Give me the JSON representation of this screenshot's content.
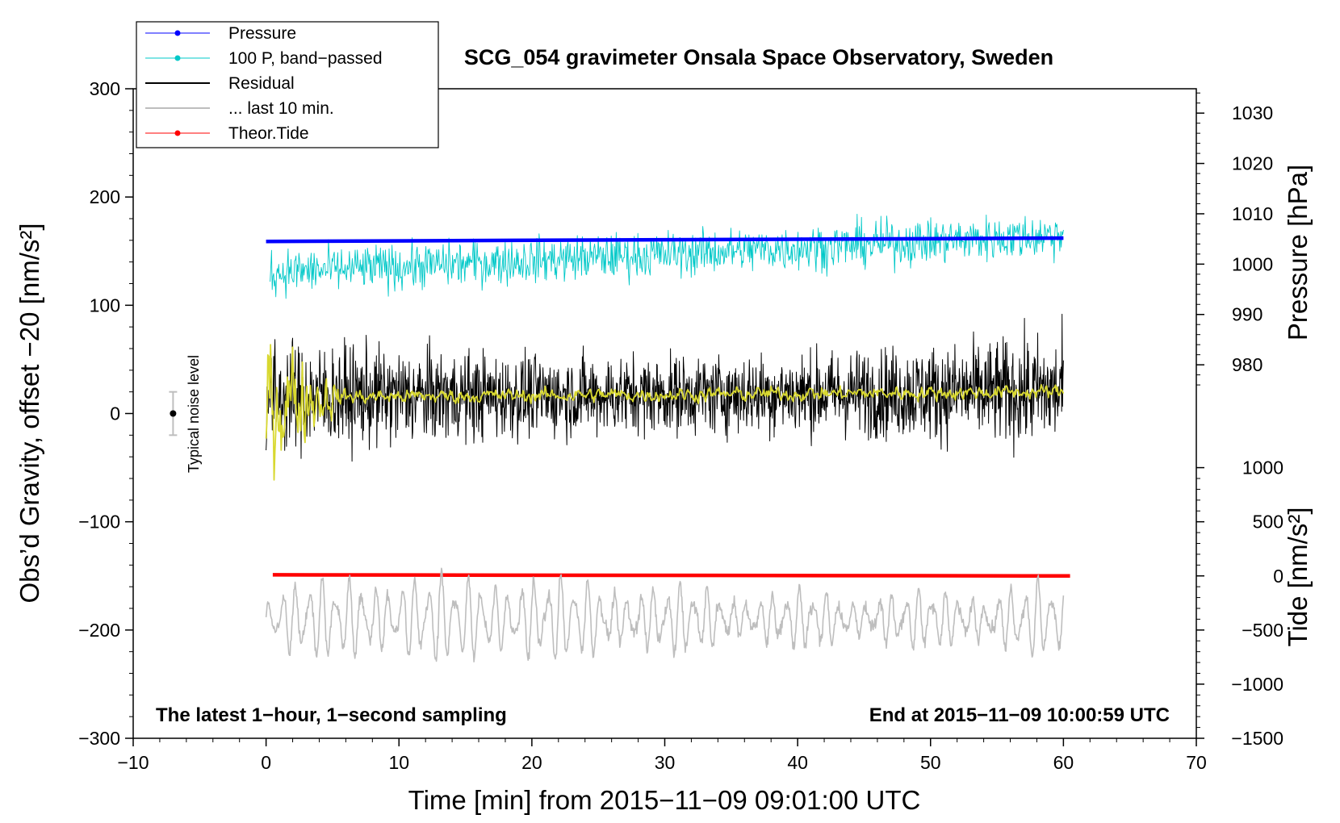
{
  "chart_data": {
    "type": "line",
    "title": "SCG_054 gravimeter Onsala Space Observatory, Sweden",
    "xlabel": "Time [min] from 2015−11−09 09:01:00 UTC",
    "ylabel_left": "Obs’d Gravity, offset −20 [nm/s²]",
    "ylabel_right_pressure": "Pressure [hPa]",
    "ylabel_right_tide": "Tide [nm/s²]",
    "xlim": [
      -10,
      70
    ],
    "ylim": [
      -300,
      300
    ],
    "x_ticks": [
      {
        "v": -10,
        "label": "−10"
      },
      {
        "v": 0,
        "label": "0"
      },
      {
        "v": 10,
        "label": "10"
      },
      {
        "v": 20,
        "label": "20"
      },
      {
        "v": 30,
        "label": "30"
      },
      {
        "v": 40,
        "label": "40"
      },
      {
        "v": 50,
        "label": "50"
      },
      {
        "v": 60,
        "label": "60"
      },
      {
        "v": 70,
        "label": "70"
      }
    ],
    "y_ticks": [
      {
        "v": 300,
        "label": "300"
      },
      {
        "v": 200,
        "label": "200"
      },
      {
        "v": 100,
        "label": "100"
      },
      {
        "v": 0,
        "label": "0"
      },
      {
        "v": -100,
        "label": "−100"
      },
      {
        "v": -200,
        "label": "−200"
      },
      {
        "v": -300,
        "label": "−300"
      }
    ],
    "pressure_axis": {
      "ticks": [
        {
          "v": 1030,
          "label": "1030"
        },
        {
          "v": 1020,
          "label": "1020"
        },
        {
          "v": 1010,
          "label": "1010"
        },
        {
          "v": 1000,
          "label": "1000"
        },
        {
          "v": 990,
          "label": "990"
        },
        {
          "v": 980,
          "label": "980"
        }
      ],
      "ref_pressure_hpa": 1000,
      "ref_gravity": 138,
      "gravity_per_hpa": 4.65
    },
    "tide_axis": {
      "ticks": [
        {
          "v": 1000,
          "label": "1000"
        },
        {
          "v": 500,
          "label": "500"
        },
        {
          "v": 0,
          "label": "0"
        },
        {
          "v": -500,
          "label": "−500"
        },
        {
          "v": -1000,
          "label": "−1000"
        },
        {
          "v": -1500,
          "label": "−1500"
        }
      ],
      "ref_tide": 0,
      "ref_gravity": -150,
      "gravity_per_unit": 0.1
    },
    "legend": {
      "position": "top-left",
      "entries": [
        {
          "label": "Pressure",
          "color": "#0000ff",
          "marker": true
        },
        {
          "label": "100 P, band−passed",
          "color": "#00c8c8",
          "marker": true
        },
        {
          "label": "Residual",
          "color": "#000000",
          "marker": false
        },
        {
          "label": "... last 10 min.",
          "color": "#bebebe",
          "marker": false
        },
        {
          "label": "Theor.Tide",
          "color": "#ff0000",
          "marker": true
        }
      ]
    },
    "annotations": {
      "bottom_left": "The latest 1−hour, 1−second sampling",
      "bottom_right": "End at 2015−11−09 10:00:59 UTC",
      "noise_label": "Typical noise level"
    },
    "noise_bar": {
      "x": -7,
      "center": 0,
      "low": -20,
      "high": 20
    },
    "series": [
      {
        "name": "Pressure",
        "color": "#0000ff",
        "x_start": 0,
        "x_end": 60,
        "kind": "linear",
        "y_start": 159,
        "y_end": 162
      },
      {
        "name": "100 P, band−passed",
        "color": "#00c8c8",
        "x_start": 0.3,
        "x_end": 60,
        "kind": "noise",
        "y_start": 130,
        "y_end": 165,
        "amplitude": 15
      },
      {
        "name": "Residual",
        "color": "#000000",
        "x_start": 0,
        "x_end": 60,
        "kind": "noise",
        "y_start": 15,
        "y_end": 20,
        "amplitude": 32
      },
      {
        "name": "Residual smoothed",
        "color": "#d8d830",
        "x_start": 0,
        "x_end": 60,
        "kind": "noise_smooth",
        "y_start": 15,
        "y_end": 20,
        "amplitude": 6
      },
      {
        "name": "... last 10 min.",
        "color": "#bebebe",
        "x_start": 0,
        "x_end": 60,
        "kind": "oscillation",
        "y_center": -190,
        "amplitude": 30
      },
      {
        "name": "Theor.Tide",
        "color": "#ff0000",
        "x_start": 0.5,
        "x_end": 60.5,
        "kind": "linear",
        "y_start": -149,
        "y_end": -150
      }
    ]
  }
}
